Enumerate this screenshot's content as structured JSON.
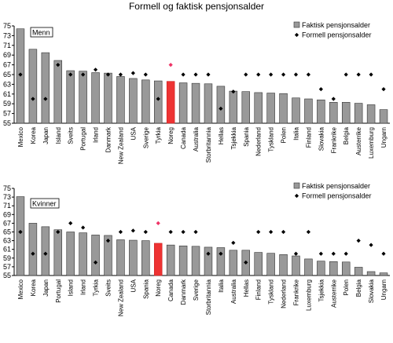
{
  "title": "Formell og faktisk pensjonsalder",
  "chart_data": [
    {
      "type": "bar",
      "panel_label": "Menn",
      "legend": {
        "bar": "Faktisk pensjonsalder",
        "marker": "Formell pensjonsalder",
        "placement": "top-right"
      },
      "ylim": [
        55,
        75
      ],
      "yticks": [
        55,
        57,
        59,
        61,
        63,
        65,
        67,
        69,
        71,
        73,
        75
      ],
      "grid": false,
      "highlight": "Noreg",
      "categories": [
        "Mexico",
        "Korea",
        "Japan",
        "Island",
        "Sveits",
        "Portugal",
        "Irland",
        "Danmark",
        "New Zealand",
        "USA",
        "Sverige",
        "Tyrkia",
        "Noreg",
        "Canada",
        "Australia",
        "Storbritannia",
        "Hellas",
        "Tsjekkia",
        "Spania",
        "Nederland",
        "Tyskland",
        "Polen",
        "Italia",
        "Finland",
        "Slovakia",
        "Frankrike",
        "Belgia",
        "Austerrike",
        "Luxemburg",
        "Ungarn"
      ],
      "series": [
        {
          "name": "Faktisk pensjonsalder",
          "values": [
            74.4,
            70.2,
            69.5,
            67.9,
            65.8,
            65.7,
            65.4,
            65.3,
            64.6,
            64.2,
            63.9,
            63.7,
            63.6,
            63.3,
            63.2,
            63.1,
            62.6,
            61.6,
            61.5,
            61.3,
            61.2,
            61.1,
            60.2,
            60.0,
            59.8,
            59.3,
            59.3,
            59.1,
            58.8,
            57.8
          ]
        },
        {
          "name": "Formell pensjonsalder",
          "values": [
            65,
            60,
            60,
            67,
            65,
            65,
            66,
            65,
            65,
            65.3,
            65,
            60,
            67,
            65,
            65,
            65,
            58,
            61.5,
            65,
            65,
            65,
            65,
            65,
            65,
            62,
            60,
            65,
            65,
            65,
            62
          ]
        }
      ]
    },
    {
      "type": "bar",
      "panel_label": "Kvinner",
      "legend": {
        "bar": "Faktisk pensjonsalder",
        "marker": "Formell pensjonsalder",
        "placement": "top-right"
      },
      "ylim": [
        55,
        75
      ],
      "yticks": [
        55,
        57,
        59,
        61,
        63,
        65,
        67,
        69,
        71,
        73,
        75
      ],
      "grid": false,
      "highlight": "Noreg",
      "categories": [
        "Mexico",
        "Korea",
        "Japan",
        "Portugal",
        "Island",
        "Irland",
        "Tyrkia",
        "Sveits",
        "New Zealand",
        "USA",
        "Spania",
        "Noreg",
        "Canada",
        "Danmark",
        "Sverige",
        "Storbritannia",
        "Italia",
        "Australia",
        "Hellas",
        "Finland",
        "Tyskland",
        "Nederland",
        "Frankrike",
        "Luxemburg",
        "Tsjekkia",
        "Austerrike",
        "Polen",
        "Belgia",
        "Slovakia",
        "Ungarn"
      ],
      "series": [
        {
          "name": "Faktisk pensjonsalder",
          "values": [
            73.1,
            67.0,
            66.2,
            65.5,
            65.0,
            64.8,
            64.3,
            64.2,
            63.2,
            63.1,
            63.0,
            62.4,
            62.0,
            61.8,
            61.7,
            61.5,
            61.4,
            60.8,
            60.8,
            60.3,
            60.1,
            59.8,
            59.5,
            58.8,
            58.3,
            58.2,
            58.1,
            56.9,
            55.9,
            55.6
          ]
        },
        {
          "name": "Formell pensjonsalder",
          "values": [
            65,
            60,
            60,
            65,
            67,
            66,
            58,
            63,
            65,
            65.3,
            65,
            67,
            65,
            65,
            65,
            60,
            60,
            62.5,
            58,
            65,
            65,
            65,
            60,
            65,
            60,
            60,
            60,
            63,
            62,
            60
          ]
        }
      ]
    }
  ]
}
